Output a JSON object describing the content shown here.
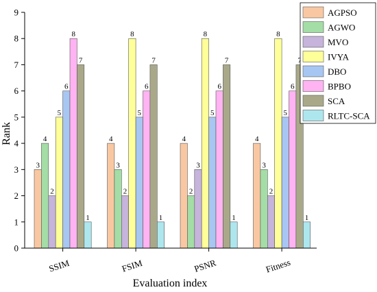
{
  "chart_data": {
    "type": "bar",
    "title": "",
    "xlabel": "Evaluation index",
    "ylabel": "Rank",
    "ylim": [
      0,
      9
    ],
    "yticks": [
      0,
      1,
      2,
      3,
      4,
      5,
      6,
      7,
      8,
      9
    ],
    "categories": [
      "SSIM",
      "FSIM",
      "PSNR",
      "Fitness"
    ],
    "series": [
      {
        "name": "AGPSO",
        "color": "#f9c8a2",
        "values": [
          3,
          4,
          4,
          4
        ]
      },
      {
        "name": "AGWO",
        "color": "#a4dda6",
        "values": [
          4,
          3,
          2,
          3
        ]
      },
      {
        "name": "MVO",
        "color": "#c6b4dc",
        "values": [
          2,
          2,
          3,
          2
        ]
      },
      {
        "name": "IVYA",
        "color": "#ffff99",
        "values": [
          5,
          8,
          8,
          8
        ]
      },
      {
        "name": "DBO",
        "color": "#a8c6f2",
        "values": [
          6,
          5,
          5,
          5
        ]
      },
      {
        "name": "BPBO",
        "color": "#ffb3f2",
        "values": [
          8,
          6,
          6,
          6
        ]
      },
      {
        "name": "SCA",
        "color": "#a9a98a",
        "values": [
          7,
          7,
          7,
          7
        ]
      },
      {
        "name": "RLTC-SCA",
        "color": "#aee6ee",
        "values": [
          1,
          1,
          1,
          1
        ]
      }
    ],
    "legend": "top-right",
    "grid": false
  }
}
